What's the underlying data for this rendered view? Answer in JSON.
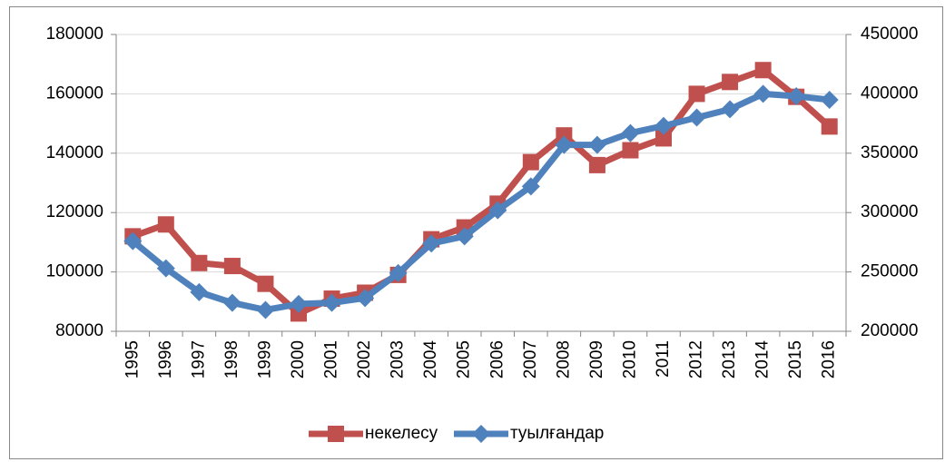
{
  "chart_data": {
    "type": "line",
    "categories": [
      "1995",
      "1996",
      "1997",
      "1998",
      "1999",
      "2000",
      "2001",
      "2002",
      "2003",
      "2004",
      "2005",
      "2006",
      "2007",
      "2008",
      "2009",
      "2010",
      "2011",
      "2012",
      "2013",
      "2014",
      "2015",
      "2016"
    ],
    "series": [
      {
        "name": "некелесу",
        "color": "#c0504d",
        "marker": "square",
        "values": [
          112000,
          116000,
          103000,
          102000,
          96000,
          86000,
          91000,
          93000,
          99000,
          111000,
          115000,
          123000,
          137000,
          146000,
          136000,
          141000,
          145000,
          160000,
          164000,
          168000,
          159000,
          149000
        ]
      },
      {
        "name": "туылғандар",
        "color": "#4f81bd",
        "marker": "diamond",
        "axis": "y2",
        "values": [
          276000,
          253000,
          233000,
          224000,
          218000,
          223000,
          224000,
          228000,
          249000,
          274000,
          280000,
          302000,
          322000,
          357000,
          357000,
          367000,
          373000,
          380000,
          387000,
          400000,
          398000,
          395000
        ]
      }
    ],
    "ylim": [
      80000,
      180000
    ],
    "yticks": [
      80000,
      100000,
      120000,
      140000,
      160000,
      180000
    ],
    "y2lim": [
      200000,
      450000
    ],
    "y2ticks": [
      200000,
      250000,
      300000,
      350000,
      400000,
      450000
    ],
    "grid": true,
    "legend": "bottom"
  }
}
